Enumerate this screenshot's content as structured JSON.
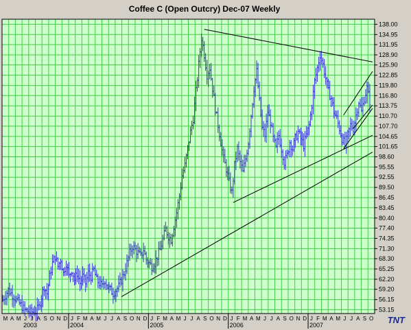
{
  "chart_data": {
    "type": "bar",
    "subtype": "ohlc",
    "title": "Coffee C (Open Outcry) Dec-07  Weekly",
    "xlabel": "",
    "ylabel": "",
    "ylim": [
      52,
      139.5
    ],
    "y_ticks": [
      "138.00",
      "134.95",
      "131.95",
      "128.90",
      "125.90",
      "122.85",
      "119.80",
      "116.80",
      "113.75",
      "110.70",
      "107.70",
      "104.65",
      "101.65",
      "98.60",
      "95.55",
      "92.55",
      "89.50",
      "86.45",
      "83.45",
      "80.40",
      "77.40",
      "74.35",
      "71.30",
      "68.30",
      "65.25",
      "62.20",
      "59.20",
      "56.15",
      "53.15"
    ],
    "x_months": [
      "M",
      "A",
      "M",
      "J",
      "J",
      "A",
      "S",
      "O",
      "N",
      "D",
      "J",
      "F",
      "M",
      "A",
      "M",
      "J",
      "J",
      "A",
      "S",
      "O",
      "N",
      "D",
      "J",
      "F",
      "M",
      "A",
      "M",
      "J",
      "J",
      "A",
      "S",
      "O",
      "N",
      "D",
      "J",
      "F",
      "M",
      "A",
      "M",
      "J",
      "J",
      "A",
      "S",
      "O",
      "N",
      "D",
      "J",
      "F",
      "M",
      "A",
      "M",
      "J",
      "J",
      "A",
      "S",
      "O"
    ],
    "x_years": [
      "2003",
      "2004",
      "2005",
      "2006",
      "2007"
    ],
    "grid": true,
    "colors": {
      "background": "#ccffcc",
      "grid": "#44cc44",
      "bars": "#3333cc",
      "trendlines": "#000000",
      "frame": "#d4d0c8"
    },
    "logo": "TNT",
    "close_points": [
      [
        0,
        56
      ],
      [
        4,
        59
      ],
      [
        8,
        57
      ],
      [
        12,
        55
      ],
      [
        16,
        53
      ],
      [
        20,
        52.5
      ],
      [
        24,
        52.5
      ],
      [
        26,
        54
      ],
      [
        28,
        57
      ],
      [
        30,
        60
      ],
      [
        32,
        58
      ],
      [
        34,
        63
      ],
      [
        36,
        67
      ],
      [
        38,
        69
      ],
      [
        40,
        66
      ],
      [
        42,
        68
      ],
      [
        44,
        64
      ],
      [
        46,
        67
      ],
      [
        48,
        63
      ],
      [
        50,
        65
      ],
      [
        52,
        62
      ],
      [
        54,
        64
      ],
      [
        56,
        61
      ],
      [
        58,
        63
      ],
      [
        60,
        61
      ],
      [
        62,
        64
      ],
      [
        64,
        63
      ],
      [
        66,
        65
      ],
      [
        68,
        62
      ],
      [
        70,
        61
      ],
      [
        72,
        60
      ],
      [
        74,
        62
      ],
      [
        76,
        60
      ],
      [
        78,
        59
      ],
      [
        80,
        58
      ],
      [
        82,
        59
      ],
      [
        84,
        60
      ],
      [
        86,
        62
      ],
      [
        88,
        64
      ],
      [
        90,
        67
      ],
      [
        92,
        70
      ],
      [
        94,
        72
      ],
      [
        96,
        71
      ],
      [
        98,
        70
      ],
      [
        100,
        69
      ],
      [
        102,
        71
      ],
      [
        104,
        68
      ],
      [
        106,
        67
      ],
      [
        108,
        66
      ],
      [
        110,
        67
      ],
      [
        112,
        69
      ],
      [
        114,
        71
      ],
      [
        116,
        74
      ],
      [
        118,
        77
      ],
      [
        120,
        75
      ],
      [
        122,
        74
      ],
      [
        124,
        78
      ],
      [
        126,
        82
      ],
      [
        128,
        87
      ],
      [
        130,
        93
      ],
      [
        132,
        96
      ],
      [
        134,
        101
      ],
      [
        136,
        106
      ],
      [
        138,
        110
      ],
      [
        140,
        118
      ],
      [
        142,
        126
      ],
      [
        144,
        134
      ],
      [
        146,
        129
      ],
      [
        148,
        123
      ],
      [
        150,
        125
      ],
      [
        152,
        119
      ],
      [
        154,
        113
      ],
      [
        156,
        108
      ],
      [
        158,
        103
      ],
      [
        160,
        98
      ],
      [
        162,
        95
      ],
      [
        164,
        91
      ],
      [
        166,
        88
      ],
      [
        168,
        96
      ],
      [
        170,
        101
      ],
      [
        172,
        97
      ],
      [
        174,
        94
      ],
      [
        176,
        98
      ],
      [
        178,
        103
      ],
      [
        180,
        111
      ],
      [
        182,
        119
      ],
      [
        184,
        124
      ],
      [
        186,
        115
      ],
      [
        188,
        107
      ],
      [
        190,
        105
      ],
      [
        192,
        112
      ],
      [
        194,
        109
      ],
      [
        196,
        104
      ],
      [
        198,
        101
      ],
      [
        200,
        105
      ],
      [
        202,
        101
      ],
      [
        204,
        97
      ],
      [
        206,
        99
      ],
      [
        208,
        103
      ],
      [
        210,
        101
      ],
      [
        212,
        104
      ],
      [
        214,
        106
      ],
      [
        216,
        104
      ],
      [
        218,
        102
      ],
      [
        220,
        105
      ],
      [
        222,
        108
      ],
      [
        224,
        114
      ],
      [
        226,
        121
      ],
      [
        228,
        125
      ],
      [
        230,
        129
      ],
      [
        232,
        126
      ],
      [
        234,
        122
      ],
      [
        236,
        118
      ],
      [
        238,
        116
      ],
      [
        240,
        112
      ],
      [
        242,
        110
      ],
      [
        244,
        107
      ],
      [
        246,
        104
      ],
      [
        248,
        102
      ],
      [
        250,
        105
      ],
      [
        252,
        108
      ],
      [
        254,
        107
      ],
      [
        256,
        111
      ],
      [
        258,
        115
      ],
      [
        260,
        112
      ],
      [
        262,
        116
      ],
      [
        264,
        119
      ],
      [
        266,
        115
      ]
    ],
    "trendlines": [
      {
        "x0": 146,
        "y0": 136.5,
        "x1": 268,
        "y1": 126.8
      },
      {
        "x0": 167,
        "y0": 85,
        "x1": 268,
        "y1": 105
      },
      {
        "x0": 86,
        "y0": 57,
        "x1": 268,
        "y1": 100
      },
      {
        "x0": 247,
        "y0": 101,
        "x1": 268,
        "y1": 113
      },
      {
        "x0": 247,
        "y0": 111,
        "x1": 268,
        "y1": 124
      },
      {
        "x0": 254,
        "y0": 107,
        "x1": 268,
        "y1": 114
      }
    ]
  }
}
